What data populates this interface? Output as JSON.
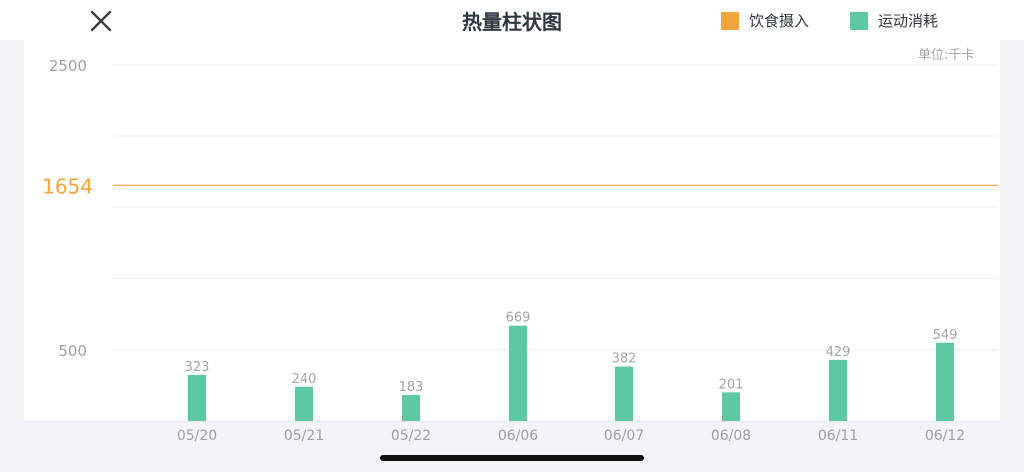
{
  "header": {
    "title": "热量柱状图",
    "close_icon": "close-icon",
    "legend": [
      {
        "label": "饮食摄入",
        "color": "#f3a53d"
      },
      {
        "label": "运动消耗",
        "color": "#5cc9a2"
      }
    ]
  },
  "chart_data": {
    "type": "bar",
    "title": "热量柱状图",
    "unit_label": "单位:千卡",
    "categories": [
      "05/20",
      "05/21",
      "05/22",
      "06/06",
      "06/07",
      "06/08",
      "06/11",
      "06/12"
    ],
    "series": [
      {
        "name": "运动消耗",
        "values": [
          323,
          240,
          183,
          669,
          382,
          201,
          429,
          549
        ],
        "color": "#5cc9a2"
      }
    ],
    "reference_line": {
      "name": "饮食摄入",
      "value": 1654,
      "label": "1654",
      "color": "#f3a53d"
    },
    "y_ticks": [
      {
        "value": 2500,
        "label": "2500"
      },
      {
        "value": 500,
        "label": "500"
      }
    ],
    "ylim": [
      0,
      2500
    ],
    "grid": true,
    "xlabel": "",
    "ylabel": ""
  }
}
